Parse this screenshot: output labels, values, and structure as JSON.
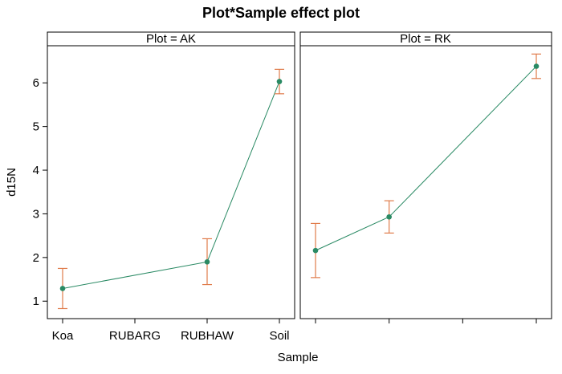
{
  "chart_data": {
    "type": "line",
    "title": "Plot*Sample effect plot",
    "xlabel": "Sample",
    "ylabel": "d15N",
    "categories": [
      "Koa",
      "RUBARG",
      "RUBHAW",
      "Soil"
    ],
    "ylim": [
      0.6,
      6.85
    ],
    "yticks": [
      1,
      2,
      3,
      4,
      5,
      6
    ],
    "grid": false,
    "colors": {
      "line": "#2a8a64",
      "point": "#2a8a64",
      "errorbar": "#e07b4a"
    },
    "panels": [
      {
        "strip_label": "Plot = AK",
        "points": [
          {
            "category": "Koa",
            "fit": 1.29,
            "lower": 0.83,
            "upper": 1.75
          },
          {
            "category": "RUBHAW",
            "fit": 1.9,
            "lower": 1.38,
            "upper": 2.43
          },
          {
            "category": "Soil",
            "fit": 6.03,
            "lower": 5.75,
            "upper": 6.31
          }
        ]
      },
      {
        "strip_label": "Plot = RK",
        "points": [
          {
            "category": "Koa",
            "fit": 2.16,
            "lower": 1.54,
            "upper": 2.78
          },
          {
            "category": "RUBARG",
            "fit": 2.93,
            "lower": 2.56,
            "upper": 3.3
          },
          {
            "category": "Soil",
            "fit": 6.38,
            "lower": 6.1,
            "upper": 6.66
          }
        ]
      }
    ]
  }
}
